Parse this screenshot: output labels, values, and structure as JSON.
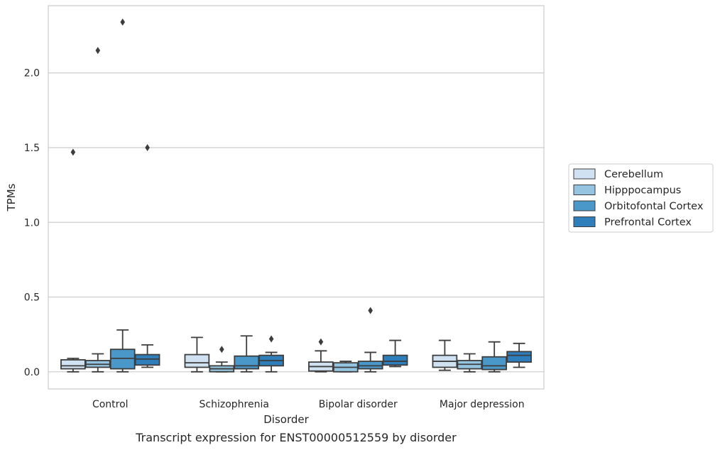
{
  "chart_data": {
    "type": "box",
    "xlabel": "Disorder",
    "ylabel": "TPMs",
    "caption": "Transcript expression for ENST00000512559 by disorder",
    "ylim": [
      -0.115,
      2.45
    ],
    "yticks": [
      0.0,
      0.5,
      1.0,
      1.5,
      2.0
    ],
    "ytick_labels": [
      "0.0",
      "0.5",
      "1.0",
      "1.5",
      "2.0"
    ],
    "grid": "horizontal",
    "legend_position": "right",
    "categories": [
      "Control",
      "Schizophrenia",
      "Bipolar disorder",
      "Major depression"
    ],
    "series": [
      {
        "name": "Cerebellum",
        "color": "#d0e1f2",
        "boxes": [
          {
            "whislo": 0.0,
            "q1": 0.02,
            "med": 0.04,
            "q3": 0.08,
            "whishi": 0.09,
            "fliers": [
              1.47
            ]
          },
          {
            "whislo": 0.0,
            "q1": 0.03,
            "med": 0.06,
            "q3": 0.115,
            "whishi": 0.23,
            "fliers": []
          },
          {
            "whislo": 0.0,
            "q1": 0.005,
            "med": 0.035,
            "q3": 0.065,
            "whishi": 0.14,
            "fliers": [
              0.2
            ]
          },
          {
            "whislo": 0.01,
            "q1": 0.03,
            "med": 0.07,
            "q3": 0.11,
            "whishi": 0.21,
            "fliers": []
          }
        ]
      },
      {
        "name": "Hipppocampus",
        "color": "#94c4df",
        "boxes": [
          {
            "whislo": 0.0,
            "q1": 0.03,
            "med": 0.05,
            "q3": 0.075,
            "whishi": 0.12,
            "fliers": [
              2.15
            ]
          },
          {
            "whislo": 0.0,
            "q1": 0.0,
            "med": 0.02,
            "q3": 0.04,
            "whishi": 0.065,
            "fliers": [
              0.15
            ]
          },
          {
            "whislo": 0.0,
            "q1": 0.0,
            "med": 0.03,
            "q3": 0.06,
            "whishi": 0.07,
            "fliers": []
          },
          {
            "whislo": 0.0,
            "q1": 0.02,
            "med": 0.05,
            "q3": 0.075,
            "whishi": 0.12,
            "fliers": []
          }
        ]
      },
      {
        "name": "Orbitofontal Cortex",
        "color": "#4a98c9",
        "boxes": [
          {
            "whislo": 0.0,
            "q1": 0.02,
            "med": 0.09,
            "q3": 0.15,
            "whishi": 0.28,
            "fliers": [
              2.34
            ]
          },
          {
            "whislo": 0.0,
            "q1": 0.02,
            "med": 0.04,
            "q3": 0.105,
            "whishi": 0.24,
            "fliers": []
          },
          {
            "whislo": 0.0,
            "q1": 0.02,
            "med": 0.04,
            "q3": 0.07,
            "whishi": 0.13,
            "fliers": [
              0.41
            ]
          },
          {
            "whislo": 0.0,
            "q1": 0.015,
            "med": 0.04,
            "q3": 0.1,
            "whishi": 0.2,
            "fliers": []
          }
        ]
      },
      {
        "name": "Prefrontal Cortex",
        "color": "#2e7ebc",
        "boxes": [
          {
            "whislo": 0.03,
            "q1": 0.045,
            "med": 0.085,
            "q3": 0.115,
            "whishi": 0.18,
            "fliers": [
              1.5
            ]
          },
          {
            "whislo": 0.0,
            "q1": 0.04,
            "med": 0.075,
            "q3": 0.11,
            "whishi": 0.13,
            "fliers": [
              0.22
            ]
          },
          {
            "whislo": 0.035,
            "q1": 0.045,
            "med": 0.07,
            "q3": 0.11,
            "whishi": 0.21,
            "fliers": []
          },
          {
            "whislo": 0.03,
            "q1": 0.065,
            "med": 0.11,
            "q3": 0.135,
            "whishi": 0.19,
            "fliers": []
          }
        ]
      }
    ]
  }
}
